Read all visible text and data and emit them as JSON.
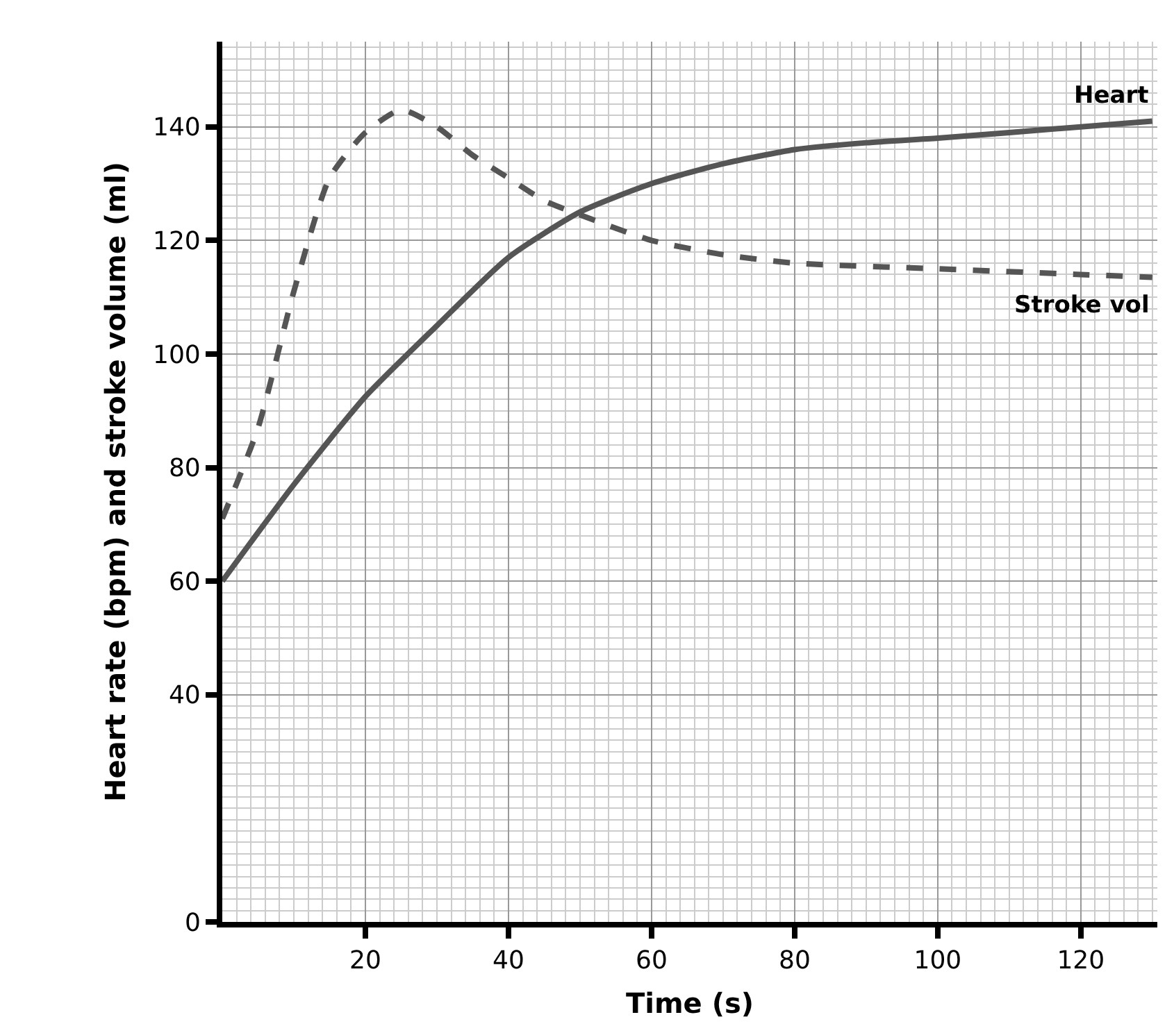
{
  "chart_data": {
    "type": "line",
    "xlabel": "Time (s)",
    "ylabel": "Heart rate (bpm) and stroke volume (ml)",
    "xlim": [
      0,
      130.7
    ],
    "ylim": [
      0,
      155
    ],
    "xticks": [
      20,
      40,
      60,
      80,
      100,
      120
    ],
    "yticks": [
      0,
      40,
      60,
      80,
      100,
      120,
      140
    ],
    "grid": true,
    "legend": false,
    "marker": "none",
    "series": [
      {
        "name": "Heart",
        "color": "#555555",
        "line_style": "solid",
        "x": [
          0,
          10,
          20,
          30,
          40,
          50,
          60,
          70,
          80,
          90,
          100,
          110,
          120,
          130
        ],
        "values": [
          60,
          77,
          92.5,
          105,
          117,
          125,
          130,
          133.5,
          136,
          137.2,
          138,
          139,
          140,
          141
        ]
      },
      {
        "name": "Stroke vol",
        "color": "#555555",
        "line_style": "dashed",
        "x": [
          0,
          5,
          10,
          15,
          20,
          25,
          30,
          35,
          40,
          45,
          50,
          60,
          70,
          80,
          100,
          120,
          130
        ],
        "values": [
          71,
          87,
          111,
          131,
          139,
          143,
          140,
          135,
          131,
          127,
          124.5,
          120,
          117.5,
          116,
          115,
          114,
          113.5
        ]
      }
    ]
  }
}
